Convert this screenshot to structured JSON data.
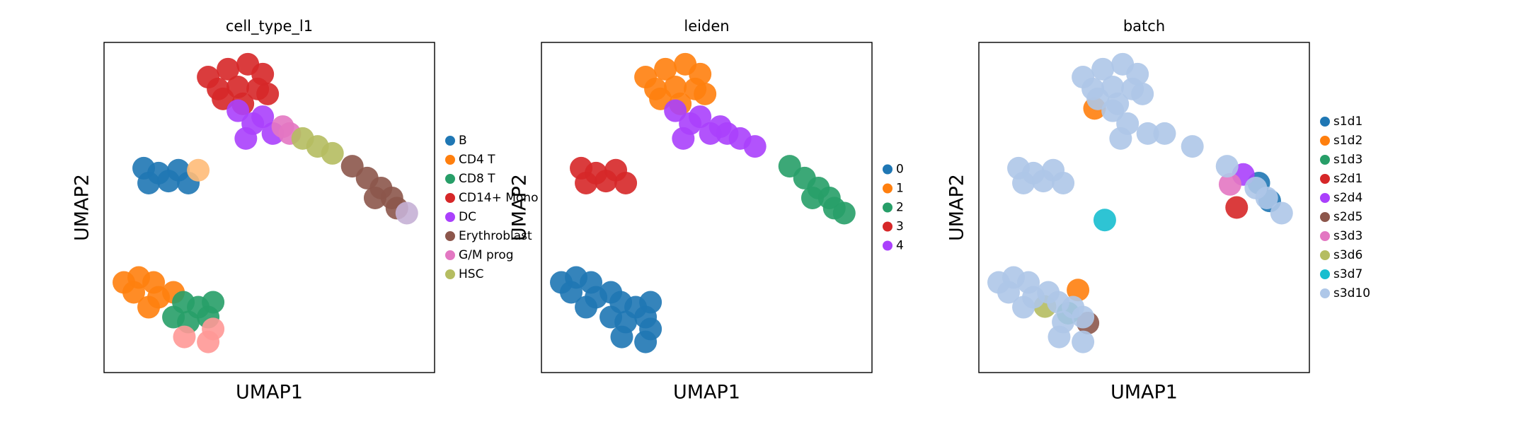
{
  "chart_data": [
    {
      "type": "scatter",
      "title": "cell_type_l1",
      "xlabel": "UMAP1",
      "ylabel": "UMAP2",
      "xlim": [
        0,
        100
      ],
      "ylim": [
        0,
        100
      ],
      "series": [
        {
          "name": "B",
          "color": "#1f77b4",
          "x": [
            12.0,
            16.5,
            22.5,
            13.5,
            19.5,
            25.5
          ],
          "y": [
            61.9,
            60.4,
            61.3,
            57.4,
            58.0,
            57.4
          ]
        },
        {
          "name": "CD4 T",
          "color": "#ff7f0e",
          "x": [
            6.0,
            10.5,
            15.0,
            9.0,
            16.5,
            13.5,
            21.0
          ],
          "y": [
            27.3,
            28.8,
            27.3,
            24.3,
            22.8,
            19.8,
            24.3
          ]
        },
        {
          "name": "CD8 T",
          "color": "#279e68",
          "x": [
            24.0,
            28.5,
            31.5,
            25.5,
            21.0,
            33.0
          ],
          "y": [
            21.3,
            19.8,
            16.8,
            15.3,
            16.8,
            21.3
          ]
        },
        {
          "name": "CD14+ Mono",
          "color": "#d62728",
          "x": [
            31.5,
            37.5,
            43.5,
            48.0,
            34.5,
            40.5,
            46.5,
            42.0,
            36.0,
            49.5
          ],
          "y": [
            89.5,
            91.9,
            93.4,
            90.4,
            85.9,
            86.5,
            85.9,
            81.4,
            82.9,
            84.4
          ]
        },
        {
          "name": "DC",
          "color": "#aa40fc",
          "x": [
            40.5,
            45.0,
            42.9,
            48.0,
            51.1
          ],
          "y": [
            79.3,
            75.4,
            70.9,
            77.5,
            72.4
          ]
        },
        {
          "name": "Erythroblast",
          "color": "#8c564b",
          "x": [
            75.1,
            79.6,
            83.8,
            87.1,
            82.0,
            88.6
          ],
          "y": [
            62.5,
            58.9,
            55.9,
            52.9,
            52.9,
            49.8
          ]
        },
        {
          "name": "G/M prog",
          "color": "#e377c2",
          "x": [
            54.1,
            56.2
          ],
          "y": [
            74.5,
            72.4
          ]
        },
        {
          "name": "HSC",
          "color": "#b5bd61",
          "x": [
            60.1,
            64.6,
            69.1
          ],
          "y": [
            70.9,
            68.5,
            66.4
          ]
        },
        {
          "color": "#c5b0d5",
          "x": [
            91.6
          ],
          "y": [
            48.3
          ]
        },
        {
          "color": "#ffbb78",
          "x": [
            28.5
          ],
          "y": [
            61.3
          ]
        },
        {
          "color": "#ff9896",
          "x": [
            24.3,
            31.5,
            33.0
          ],
          "y": [
            10.8,
            9.3,
            13.2
          ]
        }
      ]
    },
    {
      "type": "scatter",
      "title": "leiden",
      "xlabel": "UMAP1",
      "ylabel": "UMAP2",
      "xlim": [
        0,
        100
      ],
      "ylim": [
        0,
        100
      ],
      "series": [
        {
          "name": "0",
          "color": "#1f77b4",
          "x": [
            6.0,
            10.5,
            15.0,
            9.0,
            16.5,
            13.5,
            21.0,
            24.0,
            28.5,
            31.5,
            25.5,
            21.0,
            33.0,
            24.3,
            31.5,
            33.0
          ],
          "y": [
            27.3,
            28.8,
            27.3,
            24.3,
            22.8,
            19.8,
            24.3,
            21.3,
            19.8,
            16.8,
            15.3,
            16.8,
            21.3,
            10.8,
            9.3,
            13.2
          ]
        },
        {
          "name": "1",
          "color": "#ff7f0e",
          "x": [
            31.5,
            37.5,
            43.5,
            48.0,
            34.5,
            40.5,
            46.5,
            42.0,
            36.0,
            49.5
          ],
          "y": [
            89.5,
            91.9,
            93.4,
            90.4,
            85.9,
            86.5,
            85.9,
            81.4,
            82.9,
            84.4
          ]
        },
        {
          "name": "2",
          "color": "#279e68",
          "x": [
            75.1,
            79.6,
            83.8,
            87.1,
            82.0,
            88.6,
            91.6
          ],
          "y": [
            62.5,
            58.9,
            55.9,
            52.9,
            52.9,
            49.8,
            48.3
          ]
        },
        {
          "name": "3",
          "color": "#d62728",
          "x": [
            12.0,
            16.5,
            22.5,
            13.5,
            19.5,
            25.5
          ],
          "y": [
            61.9,
            60.4,
            61.3,
            57.4,
            58.0,
            57.4
          ]
        },
        {
          "name": "4",
          "color": "#aa40fc",
          "x": [
            40.5,
            45.0,
            42.9,
            48.0,
            51.1,
            54.1,
            56.2,
            60.1,
            64.6
          ],
          "y": [
            79.3,
            75.4,
            70.9,
            77.5,
            72.4,
            74.5,
            72.4,
            70.9,
            68.5
          ]
        }
      ]
    },
    {
      "type": "scatter",
      "title": "batch",
      "xlabel": "UMAP1",
      "ylabel": "UMAP2",
      "xlim": [
        0,
        100
      ],
      "ylim": [
        0,
        100
      ],
      "series": [
        {
          "name": "s1d1",
          "color": "#1f77b4",
          "x": [
            84.7,
            88.0
          ],
          "y": [
            57.4,
            52.0
          ]
        },
        {
          "name": "s1d2",
          "color": "#ff7f0e",
          "x": [
            30.0,
            35.0
          ],
          "y": [
            25.0,
            80.0
          ]
        },
        {
          "name": "s1d3",
          "color": "#279e68",
          "x": [
            27.0
          ],
          "y": [
            18.0
          ]
        },
        {
          "name": "s2d1",
          "color": "#d62728",
          "x": [
            78.0
          ],
          "y": [
            50.0
          ]
        },
        {
          "name": "s2d4",
          "color": "#aa40fc",
          "x": [
            80.0
          ],
          "y": [
            60.0
          ]
        },
        {
          "name": "s2d5",
          "color": "#8c564b",
          "x": [
            33.0
          ],
          "y": [
            15.0
          ]
        },
        {
          "name": "s3d3",
          "color": "#e377c2",
          "x": [
            76.0
          ],
          "y": [
            57.0
          ]
        },
        {
          "name": "s3d6",
          "color": "#b5bd61",
          "x": [
            20.0
          ],
          "y": [
            20.0
          ]
        },
        {
          "name": "s3d7",
          "color": "#17becf",
          "x": [
            38.1
          ],
          "y": [
            46.2
          ]
        },
        {
          "name": "s3d10",
          "color": "#aec7e8",
          "x": [
            31.5,
            37.5,
            43.5,
            48.0,
            34.5,
            40.5,
            46.5,
            42.0,
            36.0,
            49.5,
            40.5,
            45.0,
            42.9,
            51.1,
            56.2,
            64.6,
            75.1,
            83.8,
            87.1,
            91.6,
            12.0,
            16.5,
            22.5,
            13.5,
            19.5,
            25.5,
            6.0,
            10.5,
            15.0,
            9.0,
            16.5,
            13.5,
            21.0,
            24.0,
            28.5,
            31.5,
            25.5,
            24.3,
            31.5
          ],
          "y": [
            89.5,
            91.9,
            93.4,
            90.4,
            85.9,
            86.5,
            85.9,
            81.4,
            82.9,
            84.4,
            79.3,
            75.4,
            70.9,
            72.4,
            72.4,
            68.5,
            62.5,
            55.9,
            52.9,
            48.3,
            61.9,
            60.4,
            61.3,
            57.4,
            58.0,
            57.4,
            27.3,
            28.8,
            27.3,
            24.3,
            22.8,
            19.8,
            24.3,
            21.3,
            19.8,
            16.8,
            15.3,
            10.8,
            9.3
          ]
        }
      ]
    }
  ]
}
